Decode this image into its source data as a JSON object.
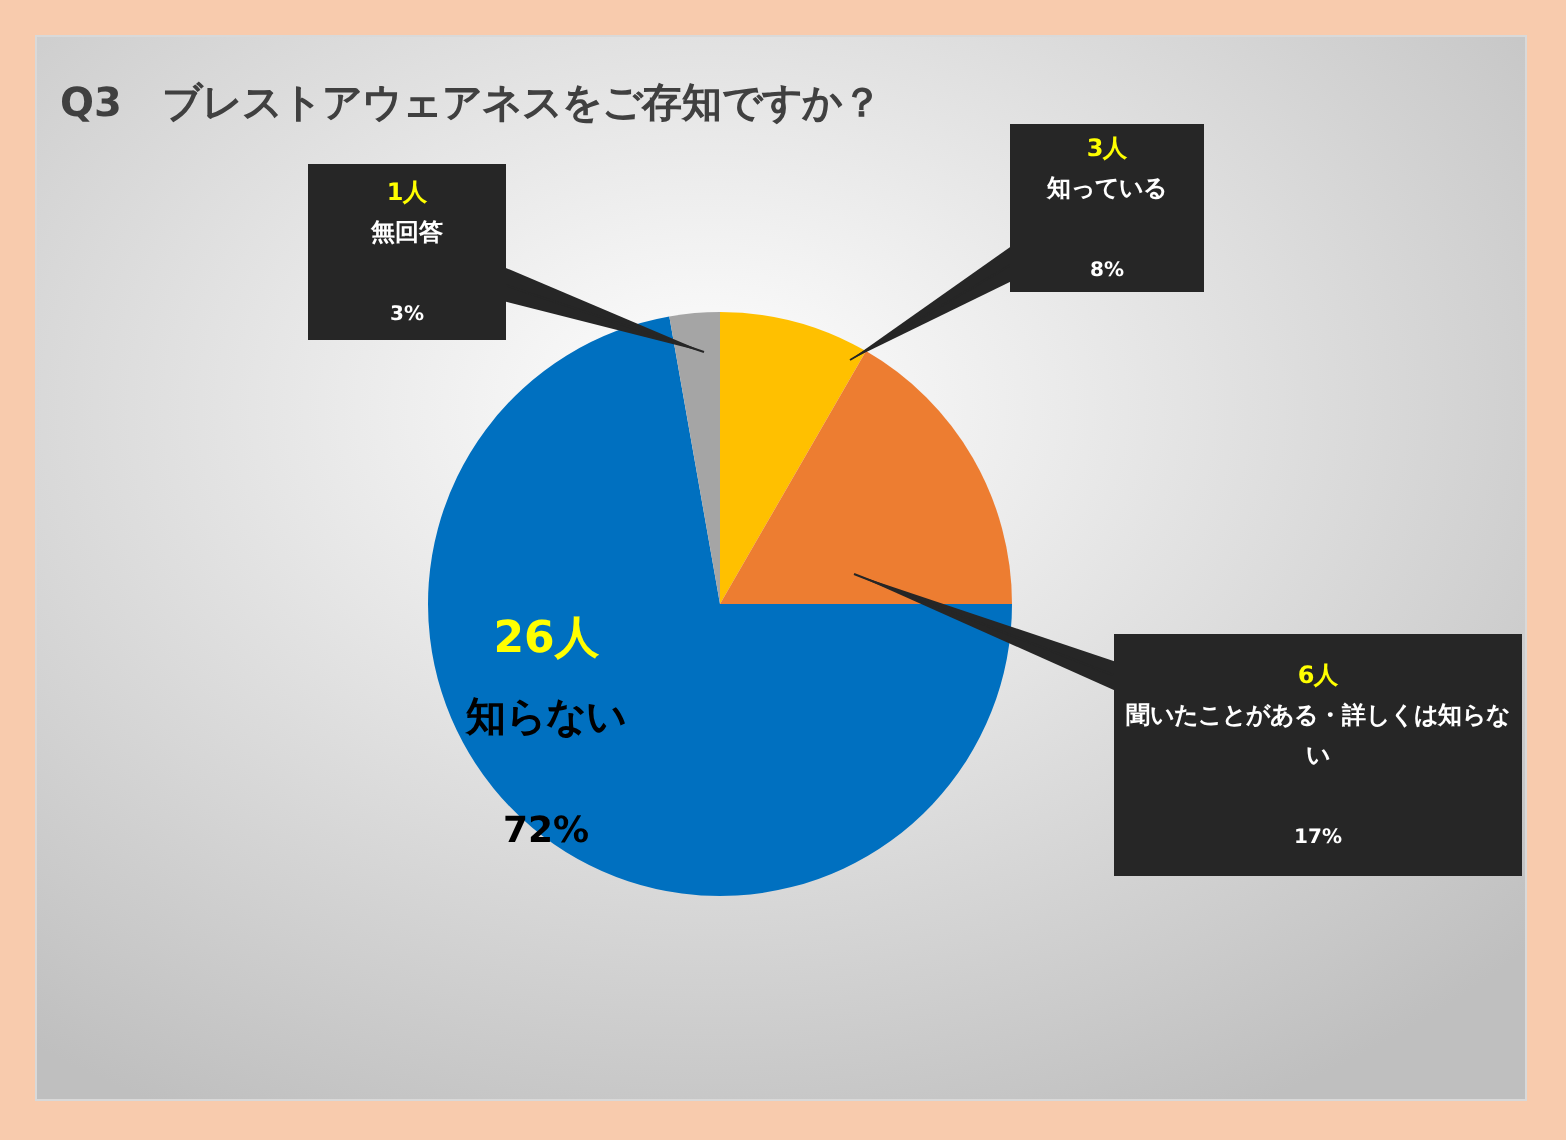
{
  "chart_data": {
    "type": "pie",
    "title": "Q3　ブレストアウェアネスをご存知ですか？",
    "categories": [
      "知っている",
      "聞いたことがある・詳しくは知らない",
      "知らない",
      "無回答"
    ],
    "values": [
      3,
      6,
      26,
      1
    ],
    "colors": [
      "#ffc000",
      "#ed7d31",
      "#0070c0",
      "#a5a5a5"
    ],
    "value_labels": [
      "3人",
      "6人",
      "26人",
      "1人"
    ],
    "annotations": [
      "8%",
      "17%",
      "72%",
      "3%"
    ],
    "legend": false
  }
}
